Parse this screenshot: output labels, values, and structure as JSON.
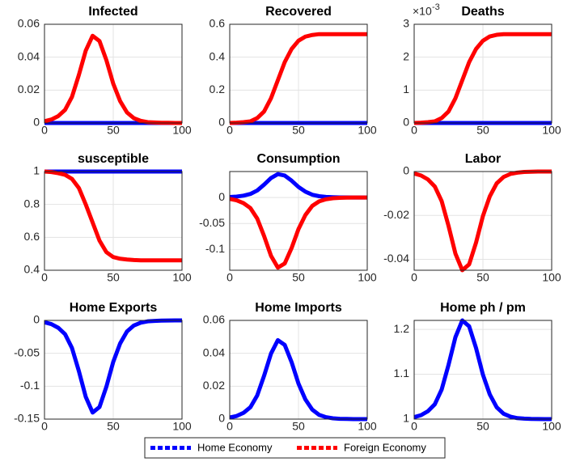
{
  "chart_data": [
    {
      "type": "line",
      "title": "Infected",
      "x": [
        0,
        5,
        10,
        15,
        20,
        25,
        30,
        35,
        40,
        45,
        50,
        55,
        60,
        65,
        70,
        75,
        80,
        85,
        90,
        95,
        100
      ],
      "xlim": [
        0,
        100
      ],
      "xticks": [
        0,
        50,
        100
      ],
      "ylim": [
        0,
        0.06
      ],
      "yticks": [
        0,
        0.02,
        0.04,
        0.06
      ],
      "grid": true,
      "series": [
        {
          "name": "Home Economy",
          "color": "#0000ff",
          "values": [
            0,
            0,
            0,
            0,
            0,
            0,
            0,
            0,
            0,
            0,
            0,
            0,
            0,
            0,
            0,
            0,
            0,
            0,
            0,
            0,
            0
          ]
        },
        {
          "name": "Foreign Economy",
          "color": "#ff0000",
          "values": [
            0.0011,
            0.0021,
            0.0042,
            0.008,
            0.0159,
            0.0292,
            0.044,
            0.053,
            0.0498,
            0.0382,
            0.0239,
            0.0133,
            0.0064,
            0.0029,
            0.0013,
            0.0005,
            0.0003,
            0.0001,
            0.0001,
            0,
            0
          ]
        }
      ]
    },
    {
      "type": "line",
      "title": "Recovered",
      "x": [
        0,
        5,
        10,
        15,
        20,
        25,
        30,
        35,
        40,
        45,
        50,
        55,
        60,
        65,
        70,
        75,
        80,
        85,
        90,
        95,
        100
      ],
      "xlim": [
        0,
        100
      ],
      "xticks": [
        0,
        50,
        100
      ],
      "ylim": [
        0,
        0.6
      ],
      "yticks": [
        0,
        0.2,
        0.4,
        0.6
      ],
      "grid": true,
      "series": [
        {
          "color": "#0000ff",
          "values": [
            0,
            0,
            0,
            0,
            0,
            0,
            0,
            0,
            0,
            0,
            0,
            0,
            0,
            0,
            0,
            0,
            0,
            0,
            0,
            0,
            0
          ]
        },
        {
          "color": "#ff0000",
          "values": [
            0,
            0.002,
            0.005,
            0.01,
            0.03,
            0.07,
            0.15,
            0.26,
            0.37,
            0.45,
            0.5,
            0.525,
            0.535,
            0.54,
            0.54,
            0.54,
            0.54,
            0.54,
            0.54,
            0.54,
            0.54
          ]
        }
      ]
    },
    {
      "type": "line",
      "title": "Deaths",
      "yscale_label": "×10",
      "yscale_exponent": "-3",
      "x": [
        0,
        5,
        10,
        15,
        20,
        25,
        30,
        35,
        40,
        45,
        50,
        55,
        60,
        65,
        70,
        75,
        80,
        85,
        90,
        95,
        100
      ],
      "xlim": [
        0,
        100
      ],
      "xticks": [
        0,
        50,
        100
      ],
      "ylim": [
        0,
        0.003
      ],
      "yticks": [
        {
          "value": 0,
          "label": "0"
        },
        {
          "value": 0.001,
          "label": "1"
        },
        {
          "value": 0.002,
          "label": "2"
        },
        {
          "value": 0.003,
          "label": "3"
        }
      ],
      "grid": true,
      "series": [
        {
          "color": "#0000ff",
          "values": [
            0,
            0,
            0,
            0,
            0,
            0,
            0,
            0,
            0,
            0,
            0,
            0,
            0,
            0,
            0,
            0,
            0,
            0,
            0,
            0,
            0
          ]
        },
        {
          "color": "#ff0000",
          "values": [
            0,
            1e-05,
            2.5e-05,
            5e-05,
            0.00015,
            0.00035,
            0.00075,
            0.0013,
            0.00185,
            0.00225,
            0.0025,
            0.00263,
            0.00268,
            0.0027,
            0.0027,
            0.0027,
            0.0027,
            0.0027,
            0.0027,
            0.0027,
            0.0027
          ]
        }
      ]
    },
    {
      "type": "line",
      "title": "susceptible",
      "x": [
        0,
        5,
        10,
        15,
        20,
        25,
        30,
        35,
        40,
        45,
        50,
        55,
        60,
        65,
        70,
        75,
        80,
        85,
        90,
        95,
        100
      ],
      "xlim": [
        0,
        100
      ],
      "xticks": [
        0,
        50,
        100
      ],
      "ylim": [
        0.4,
        1
      ],
      "yticks": [
        0.4,
        0.6,
        0.8,
        1
      ],
      "grid": true,
      "series": [
        {
          "color": "#0000ff",
          "values": [
            1,
            1,
            1,
            1,
            1,
            1,
            1,
            1,
            1,
            1,
            1,
            1,
            1,
            1,
            1,
            1,
            1,
            1,
            1,
            1,
            1
          ]
        },
        {
          "color": "#ff0000",
          "values": [
            1,
            0.997,
            0.99,
            0.98,
            0.955,
            0.9,
            0.8,
            0.69,
            0.58,
            0.51,
            0.48,
            0.47,
            0.465,
            0.462,
            0.46,
            0.46,
            0.46,
            0.46,
            0.46,
            0.46,
            0.46
          ]
        }
      ]
    },
    {
      "type": "line",
      "title": "Consumption",
      "x": [
        0,
        5,
        10,
        15,
        20,
        25,
        30,
        35,
        40,
        45,
        50,
        55,
        60,
        65,
        70,
        75,
        80,
        85,
        90,
        95,
        100
      ],
      "xlim": [
        0,
        100
      ],
      "xticks": [
        0,
        50,
        100
      ],
      "ylim": [
        -0.14,
        0.05
      ],
      "yticks": [
        -0.1,
        -0.05,
        0
      ],
      "grid": true,
      "series": [
        {
          "color": "#0000ff",
          "values": [
            0.0009,
            0.0018,
            0.0036,
            0.0068,
            0.0135,
            0.0248,
            0.0374,
            0.045,
            0.0423,
            0.0324,
            0.0203,
            0.0113,
            0.0054,
            0.0025,
            0.0011,
            0.0005,
            0.0002,
            0.0001,
            0,
            0,
            0
          ]
        },
        {
          "color": "#ff0000",
          "values": [
            -0.0027,
            -0.0054,
            -0.0108,
            -0.0203,
            -0.0405,
            -0.0743,
            -0.1121,
            -0.135,
            -0.1269,
            -0.0972,
            -0.0608,
            -0.0338,
            -0.0162,
            -0.0074,
            -0.0034,
            -0.0014,
            -0.0007,
            -0.0003,
            -0.0001,
            0,
            0
          ]
        }
      ]
    },
    {
      "type": "line",
      "title": "Labor",
      "x": [
        0,
        5,
        10,
        15,
        20,
        25,
        30,
        35,
        40,
        45,
        50,
        55,
        60,
        65,
        70,
        75,
        80,
        85,
        90,
        95,
        100
      ],
      "xlim": [
        0,
        100
      ],
      "xticks": [
        0,
        50,
        100
      ],
      "ylim": [
        -0.045,
        0
      ],
      "yticks": [
        -0.04,
        -0.02,
        0
      ],
      "grid": true,
      "series": [
        {
          "color": "#ff0000",
          "values": [
            -0.0009,
            -0.0018,
            -0.0036,
            -0.0068,
            -0.0135,
            -0.0248,
            -0.0374,
            -0.045,
            -0.0423,
            -0.0324,
            -0.0203,
            -0.0113,
            -0.0054,
            -0.0025,
            -0.0011,
            -0.0005,
            -0.0002,
            -0.0001,
            0,
            0,
            0
          ]
        }
      ]
    },
    {
      "type": "line",
      "title": "Home Exports",
      "x": [
        0,
        5,
        10,
        15,
        20,
        25,
        30,
        35,
        40,
        45,
        50,
        55,
        60,
        65,
        70,
        75,
        80,
        85,
        90,
        95,
        100
      ],
      "xlim": [
        0,
        100
      ],
      "xticks": [
        0,
        50,
        100
      ],
      "ylim": [
        -0.15,
        0
      ],
      "yticks": [
        -0.15,
        -0.1,
        -0.05,
        0
      ],
      "grid": true,
      "series": [
        {
          "color": "#0000ff",
          "values": [
            -0.0028,
            -0.0056,
            -0.0112,
            -0.021,
            -0.042,
            -0.077,
            -0.1162,
            -0.14,
            -0.1316,
            -0.1008,
            -0.063,
            -0.035,
            -0.0168,
            -0.0077,
            -0.0035,
            -0.0014,
            -0.0007,
            -0.0003,
            -0.0001,
            0,
            0
          ]
        }
      ]
    },
    {
      "type": "line",
      "title": "Home Imports",
      "x": [
        0,
        5,
        10,
        15,
        20,
        25,
        30,
        35,
        40,
        45,
        50,
        55,
        60,
        65,
        70,
        75,
        80,
        85,
        90,
        95,
        100
      ],
      "xlim": [
        0,
        100
      ],
      "xticks": [
        0,
        50,
        100
      ],
      "ylim": [
        0,
        0.06
      ],
      "yticks": [
        0,
        0.02,
        0.04,
        0.06
      ],
      "grid": true,
      "series": [
        {
          "color": "#0000ff",
          "values": [
            0.001,
            0.0019,
            0.0038,
            0.0072,
            0.0144,
            0.0264,
            0.0398,
            0.048,
            0.0451,
            0.0346,
            0.0216,
            0.012,
            0.0058,
            0.0026,
            0.0012,
            0.0005,
            0.0002,
            0.0001,
            0,
            0,
            0
          ]
        }
      ]
    },
    {
      "type": "line",
      "title": "Home ph / pm",
      "x": [
        0,
        5,
        10,
        15,
        20,
        25,
        30,
        35,
        40,
        45,
        50,
        55,
        60,
        65,
        70,
        75,
        80,
        85,
        90,
        95,
        100
      ],
      "xlim": [
        0,
        100
      ],
      "xticks": [
        0,
        50,
        100
      ],
      "ylim": [
        1,
        1.22
      ],
      "yticks": [
        1,
        1.1,
        1.2
      ],
      "grid": true,
      "series": [
        {
          "color": "#0000ff",
          "values": [
            1.0044,
            1.0088,
            1.0176,
            1.033,
            1.066,
            1.121,
            1.1826,
            1.22,
            1.2068,
            1.1584,
            1.099,
            1.055,
            1.0264,
            1.0121,
            1.0055,
            1.0022,
            1.0011,
            1.0004,
            1.0002,
            1,
            1
          ]
        }
      ]
    }
  ]
}
